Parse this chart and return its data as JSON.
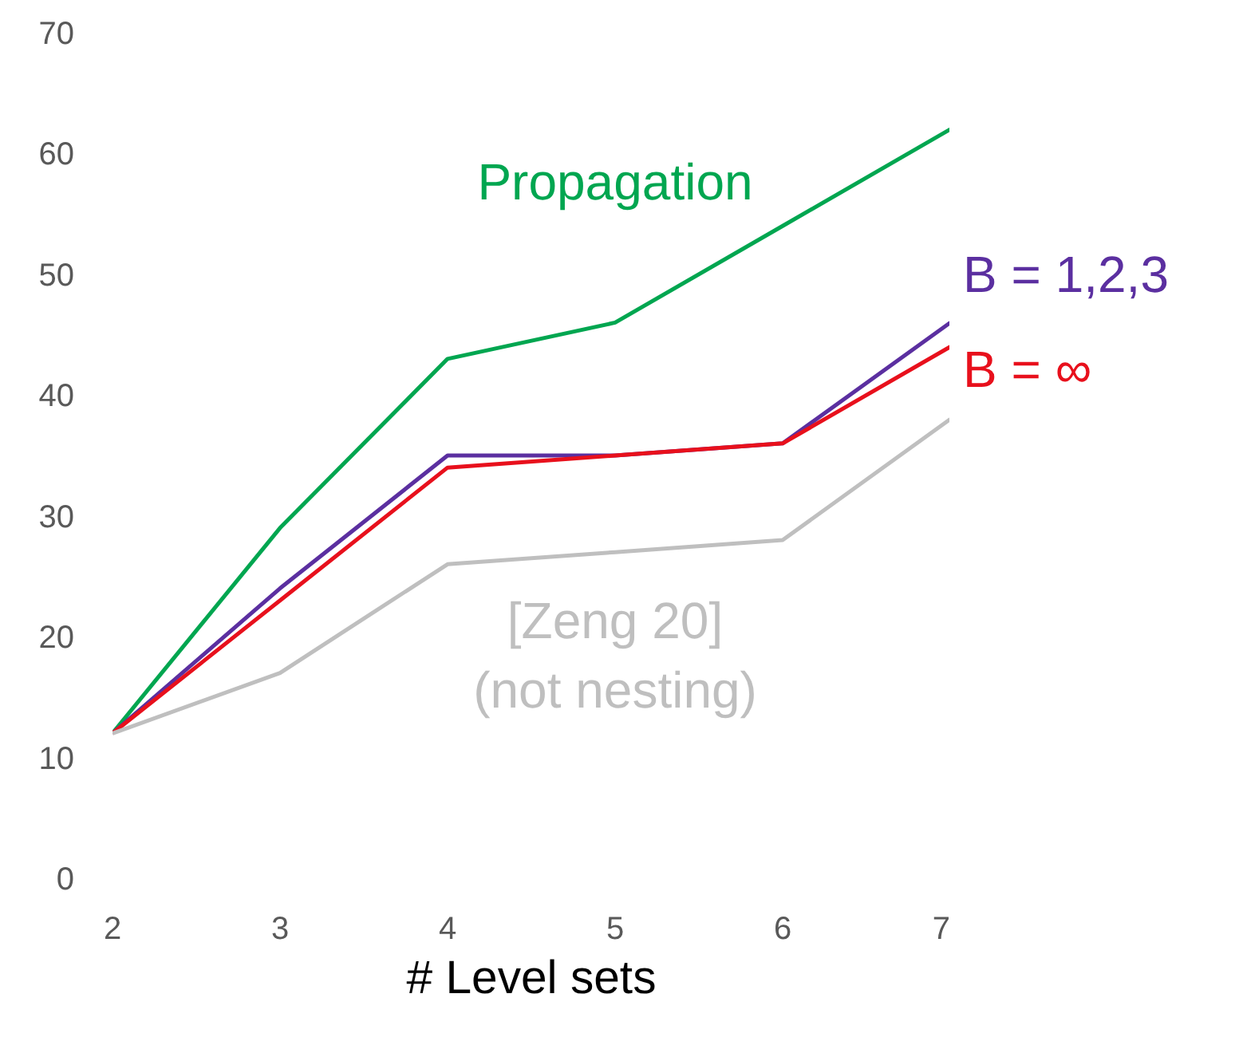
{
  "chart_data": {
    "type": "line",
    "xlabel": "# Level sets",
    "x": [
      2,
      3,
      4,
      5,
      6,
      7
    ],
    "xlim": [
      2,
      7
    ],
    "xticks": [
      2,
      3,
      4,
      5,
      6,
      7
    ],
    "ylim": [
      0,
      70
    ],
    "yticks": [
      0,
      10,
      20,
      30,
      40,
      50,
      60,
      70
    ],
    "grid": false,
    "legend": false,
    "marker": "none",
    "line_style": "solid",
    "series": [
      {
        "name": "Propagation",
        "color": "#00a650",
        "values": [
          12,
          29,
          43,
          46,
          54,
          62
        ]
      },
      {
        "name": "B = 1,2,3",
        "color": "#5b2fa0",
        "values": [
          12,
          24,
          35,
          35,
          36,
          46
        ]
      },
      {
        "name": "B = ∞",
        "color": "#e8101c",
        "values": [
          12,
          23,
          34,
          35,
          36,
          44
        ]
      },
      {
        "name": "[Zeng 20]\n(not nesting)",
        "color": "#bfbfbf",
        "values": [
          12,
          17,
          26,
          27,
          28,
          38
        ]
      }
    ]
  }
}
